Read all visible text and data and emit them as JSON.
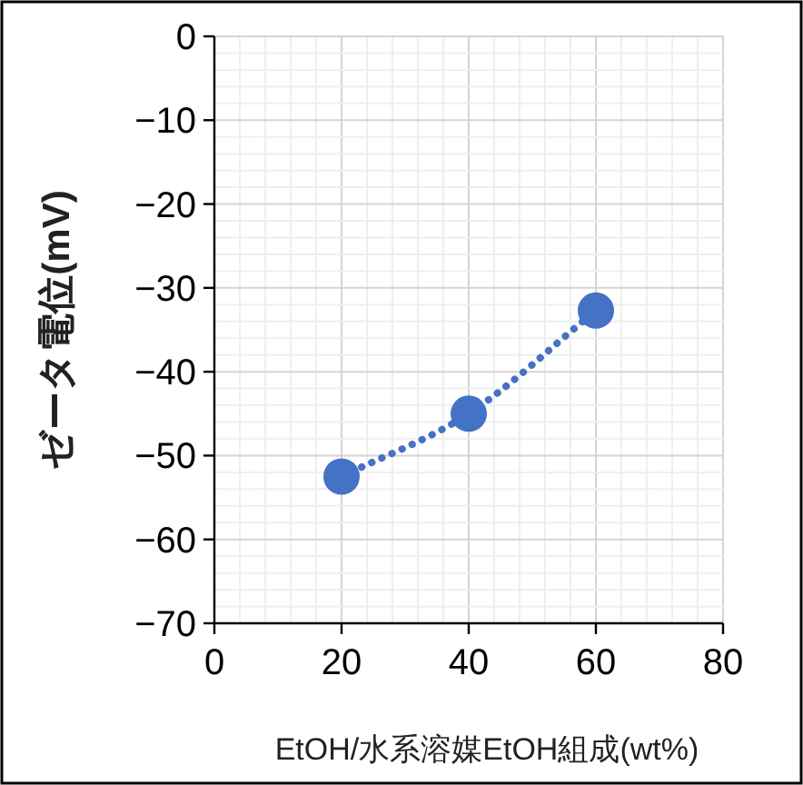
{
  "chart_data": {
    "type": "line",
    "xlabel": "EtOH/水系溶媒EtOH組成(wt%)",
    "ylabel": "ゼータ電位(mV)",
    "x": [
      20,
      40,
      60
    ],
    "series": [
      {
        "color": "#4472c4",
        "values": [
          -52.5,
          -45,
          -32.7
        ],
        "marker": "circle",
        "line_style": "dotted"
      }
    ],
    "xlim": [
      0,
      80
    ],
    "xticks": [
      0,
      20,
      40,
      60,
      80
    ],
    "ylim": [
      -70,
      0
    ],
    "yticks": [
      0,
      {
        "value": -10,
        "label": "−10"
      },
      {
        "value": -20,
        "label": "−20"
      },
      {
        "value": -30,
        "label": "−30"
      },
      {
        "value": -40,
        "label": "−40"
      },
      {
        "value": -50,
        "label": "−50"
      },
      {
        "value": -60,
        "label": "−60"
      },
      {
        "value": -70,
        "label": "−70"
      }
    ],
    "grid": true
  }
}
